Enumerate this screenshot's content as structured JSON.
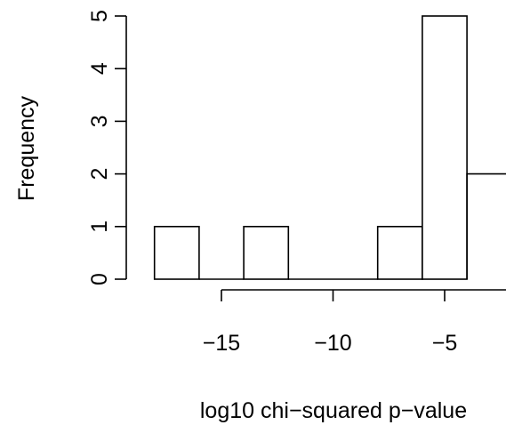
{
  "chart_data": {
    "type": "bar",
    "title": "",
    "xlabel": "log10 chi−squared p−value",
    "ylabel": "Frequency",
    "bins": [
      {
        "x0": -18,
        "x1": -16,
        "count": 1
      },
      {
        "x0": -16,
        "x1": -14,
        "count": 0
      },
      {
        "x0": -14,
        "x1": -12,
        "count": 1
      },
      {
        "x0": -12,
        "x1": -10,
        "count": 0
      },
      {
        "x0": -10,
        "x1": -8,
        "count": 0
      },
      {
        "x0": -8,
        "x1": -6,
        "count": 1
      },
      {
        "x0": -6,
        "x1": -4,
        "count": 5
      },
      {
        "x0": -4,
        "x1": -2,
        "count": 2
      }
    ],
    "x_ticks": [
      -15,
      -10,
      -5
    ],
    "x_tick_labels": [
      "−15",
      "−10",
      "−5"
    ],
    "y_ticks": [
      0,
      1,
      2,
      3,
      4,
      5
    ],
    "y_tick_labels": [
      "0",
      "1",
      "2",
      "3",
      "4",
      "5"
    ],
    "xlim": [
      -18,
      -2
    ],
    "ylim": [
      0,
      5
    ],
    "colors": {
      "bar_fill": "#ffffff",
      "bar_stroke": "#000000",
      "axis": "#000000"
    },
    "grid": false,
    "legend": "none"
  }
}
